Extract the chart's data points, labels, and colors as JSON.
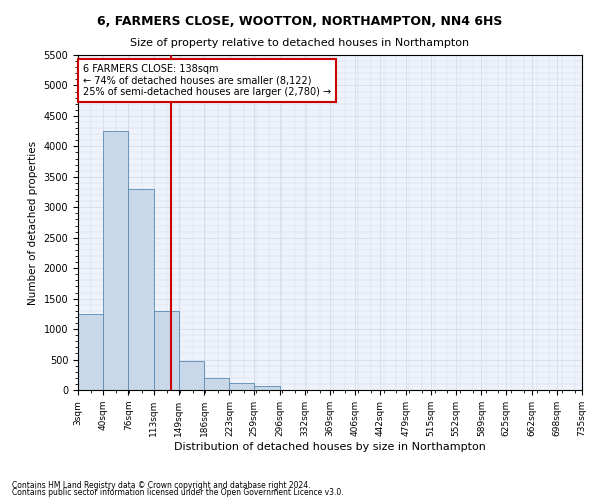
{
  "title": "6, FARMERS CLOSE, WOOTTON, NORTHAMPTON, NN4 6HS",
  "subtitle": "Size of property relative to detached houses in Northampton",
  "xlabel": "Distribution of detached houses by size in Northampton",
  "ylabel": "Number of detached properties",
  "footnote1": "Contains HM Land Registry data © Crown copyright and database right 2024.",
  "footnote2": "Contains public sector information licensed under the Open Government Licence v3.0.",
  "annotation_title": "6 FARMERS CLOSE: 138sqm",
  "annotation_line1": "← 74% of detached houses are smaller (8,122)",
  "annotation_line2": "25% of semi-detached houses are larger (2,780) →",
  "property_size": 138,
  "bar_color": "#c8d8e8",
  "bar_edge_color": "#5a8ab0",
  "vline_color": "#cc0000",
  "annotation_box_color": "#cc0000",
  "grid_color": "#d0d8e8",
  "background_color": "#eef2fa",
  "bin_edges": [
    3,
    40,
    76,
    113,
    149,
    186,
    223,
    259,
    296,
    332,
    369,
    406,
    442,
    479,
    515,
    552,
    589,
    625,
    662,
    698,
    735
  ],
  "bin_labels": [
    "3sqm",
    "40sqm",
    "76sqm",
    "113sqm",
    "149sqm",
    "186sqm",
    "223sqm",
    "259sqm",
    "296sqm",
    "332sqm",
    "369sqm",
    "406sqm",
    "442sqm",
    "479sqm",
    "515sqm",
    "552sqm",
    "589sqm",
    "625sqm",
    "662sqm",
    "698sqm",
    "735sqm"
  ],
  "bar_heights": [
    1250,
    4250,
    3300,
    1300,
    480,
    200,
    110,
    70,
    0,
    0,
    0,
    0,
    0,
    0,
    0,
    0,
    0,
    0,
    0,
    0
  ],
  "ylim": [
    0,
    5500
  ],
  "yticks": [
    0,
    500,
    1000,
    1500,
    2000,
    2500,
    3000,
    3500,
    4000,
    4500,
    5000,
    5500
  ]
}
